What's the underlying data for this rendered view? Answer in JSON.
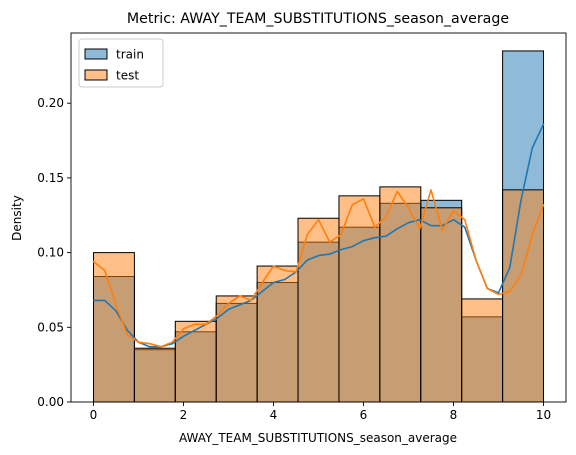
{
  "chart_data": {
    "type": "bar",
    "title": "Metric: AWAY_TEAM_SUBSTITUTIONS_season_average",
    "xlabel": "AWAY_TEAM_SUBSTITUTIONS_season_average",
    "ylabel": "Density",
    "xlim": [
      -0.5,
      10.5
    ],
    "ylim": [
      0,
      0.247
    ],
    "xticks": [
      0,
      2,
      4,
      6,
      8,
      10
    ],
    "yticks": [
      0.0,
      0.05,
      0.1,
      0.15,
      0.2
    ],
    "bin_edges": [
      0,
      0.909,
      1.818,
      2.727,
      3.636,
      4.545,
      5.455,
      6.364,
      7.273,
      8.182,
      9.091,
      10
    ],
    "legend_position": "top-left",
    "grid": false,
    "series": [
      {
        "name": "train",
        "color": "#1f77b4",
        "values": [
          0.084,
          0.035,
          0.047,
          0.066,
          0.08,
          0.107,
          0.117,
          0.133,
          0.135,
          0.057,
          0.235
        ],
        "kde_x": [
          0,
          0.25,
          0.5,
          0.75,
          1.0,
          1.25,
          1.5,
          1.75,
          2.0,
          2.25,
          2.5,
          2.75,
          3.0,
          3.25,
          3.5,
          3.75,
          4.0,
          4.25,
          4.5,
          4.75,
          5.0,
          5.25,
          5.5,
          5.75,
          6.0,
          6.25,
          6.5,
          6.75,
          7.0,
          7.25,
          7.5,
          7.75,
          8.0,
          8.25,
          8.5,
          8.75,
          9.0,
          9.25,
          9.5,
          9.75,
          10.0
        ],
        "kde_y": [
          0.068,
          0.068,
          0.061,
          0.048,
          0.04,
          0.037,
          0.037,
          0.039,
          0.044,
          0.048,
          0.052,
          0.056,
          0.062,
          0.065,
          0.068,
          0.074,
          0.08,
          0.082,
          0.087,
          0.095,
          0.098,
          0.099,
          0.102,
          0.104,
          0.108,
          0.11,
          0.111,
          0.116,
          0.12,
          0.122,
          0.118,
          0.118,
          0.122,
          0.117,
          0.095,
          0.076,
          0.073,
          0.09,
          0.135,
          0.17,
          0.186
        ]
      },
      {
        "name": "test",
        "color": "#ff7f0e",
        "values": [
          0.1,
          0.036,
          0.054,
          0.071,
          0.091,
          0.123,
          0.138,
          0.144,
          0.13,
          0.069,
          0.142
        ],
        "kde_x": [
          0,
          0.25,
          0.5,
          0.75,
          1.0,
          1.25,
          1.5,
          1.75,
          2.0,
          2.25,
          2.5,
          2.75,
          3.0,
          3.25,
          3.5,
          3.75,
          4.0,
          4.25,
          4.5,
          4.75,
          5.0,
          5.25,
          5.5,
          5.75,
          6.0,
          6.25,
          6.5,
          6.75,
          7.0,
          7.25,
          7.5,
          7.75,
          8.0,
          8.25,
          8.5,
          8.75,
          9.0,
          9.25,
          9.5,
          9.75,
          10.0
        ],
        "kde_y": [
          0.094,
          0.088,
          0.065,
          0.045,
          0.04,
          0.039,
          0.037,
          0.04,
          0.049,
          0.052,
          0.052,
          0.058,
          0.066,
          0.071,
          0.068,
          0.08,
          0.091,
          0.088,
          0.087,
          0.112,
          0.122,
          0.107,
          0.112,
          0.132,
          0.136,
          0.117,
          0.124,
          0.141,
          0.13,
          0.116,
          0.142,
          0.115,
          0.128,
          0.122,
          0.095,
          0.076,
          0.072,
          0.074,
          0.085,
          0.112,
          0.132
        ]
      }
    ]
  }
}
